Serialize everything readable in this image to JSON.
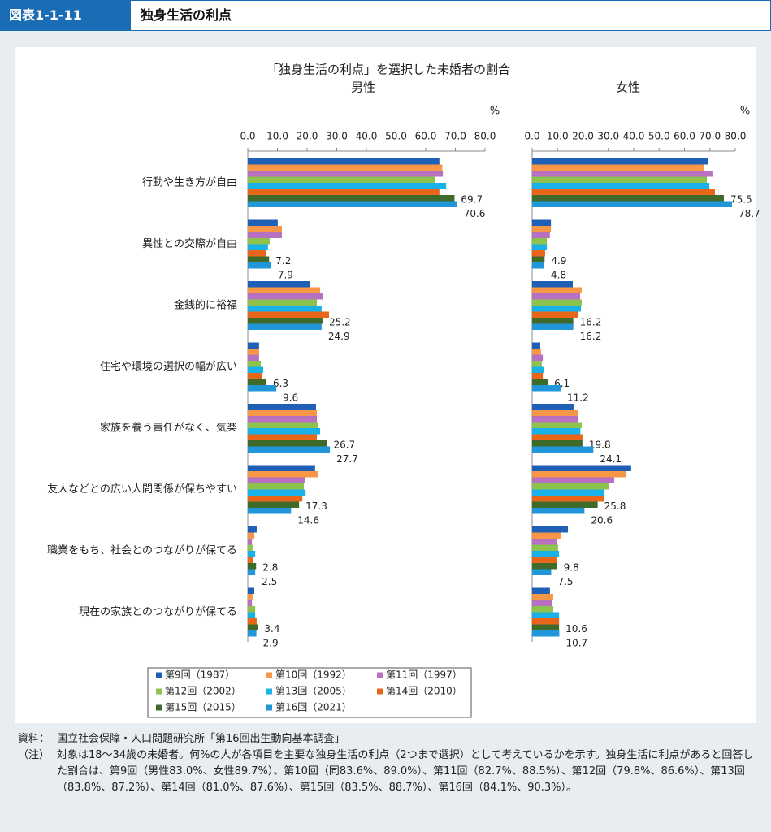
{
  "header": {
    "label": "図表1-1-11",
    "title": "独身生活の利点"
  },
  "chart_data": {
    "type": "bar",
    "horizontal": true,
    "title": "「独身生活の利点」を選択した未婚者の割合",
    "categories": [
      "行動や生き方が自由",
      "異性との交際が自由",
      "金銭的に裕福",
      "住宅や環境の選択の幅が広い",
      "家族を養う責任がなく、気楽",
      "友人などとの広い人間関係が保ちやすい",
      "職業をもち、社会とのつながりが保てる",
      "現在の家族とのつながりが保てる"
    ],
    "legend": [
      {
        "name": "第9回（1987）",
        "color": "#1f5fb5"
      },
      {
        "name": "第10回（1992）",
        "color": "#f79646"
      },
      {
        "name": "第11回（1997）",
        "color": "#b870c0"
      },
      {
        "name": "第12回（2002）",
        "color": "#8dc24c"
      },
      {
        "name": "第13回（2005）",
        "color": "#19b2e8"
      },
      {
        "name": "第14回（2010）",
        "color": "#e8661a"
      },
      {
        "name": "第15回（2015）",
        "color": "#3f6b2a"
      },
      {
        "name": "第16回（2021）",
        "color": "#2196d8"
      }
    ],
    "panels": [
      {
        "subtitle": "男性",
        "unit": "%",
        "xlim": [
          0,
          80
        ],
        "xticks": [
          {
            "value": 0,
            "label": "0.0"
          },
          {
            "value": 10,
            "label": "10.0"
          },
          {
            "value": 20,
            "label": "20.0"
          },
          {
            "value": 30,
            "label": "30.0"
          },
          {
            "value": 40,
            "label": "40.0"
          },
          {
            "value": 50,
            "label": "50.0"
          },
          {
            "value": 60,
            "label": "60.0"
          },
          {
            "value": 70,
            "label": "70.0"
          },
          {
            "value": 80,
            "label": "80.0"
          }
        ],
        "series": [
          {
            "labeled": false,
            "values": [
              64.6,
              10.1,
              21.1,
              3.8,
              23.0,
              22.7,
              3.0,
              2.2
            ]
          },
          {
            "labeled": false,
            "values": [
              65.6,
              11.5,
              24.4,
              3.8,
              23.3,
              23.6,
              2.2,
              1.6
            ]
          },
          {
            "labeled": false,
            "values": [
              65.8,
              11.5,
              25.2,
              3.8,
              23.3,
              19.2,
              1.4,
              1.4
            ]
          },
          {
            "labeled": false,
            "values": [
              63.1,
              7.4,
              23.3,
              4.4,
              23.6,
              18.9,
              1.6,
              2.5
            ]
          },
          {
            "labeled": false,
            "values": [
              66.9,
              6.8,
              24.9,
              5.2,
              24.4,
              19.5,
              2.5,
              2.5
            ]
          },
          {
            "labeled": false,
            "values": [
              64.6,
              6.3,
              27.4,
              4.7,
              23.3,
              18.4,
              1.9,
              3.0
            ]
          },
          {
            "labeled": true,
            "values": [
              69.7,
              7.2,
              25.2,
              6.3,
              26.7,
              17.3,
              2.8,
              3.4
            ]
          },
          {
            "labeled": true,
            "values": [
              70.6,
              7.9,
              24.9,
              9.6,
              27.7,
              14.6,
              2.5,
              2.9
            ]
          }
        ]
      },
      {
        "subtitle": "女性",
        "unit": "%",
        "xlim": [
          0,
          80
        ],
        "xticks": [
          {
            "value": 0,
            "label": "0.0"
          },
          {
            "value": 10,
            "label": "10.0"
          },
          {
            "value": 20,
            "label": "20.0"
          },
          {
            "value": 30,
            "label": "30.0"
          },
          {
            "value": 40,
            "label": "40.0"
          },
          {
            "value": 50,
            "label": "50.0"
          },
          {
            "value": 60,
            "label": "60.0"
          },
          {
            "value": 70,
            "label": "70.0"
          },
          {
            "value": 80,
            "label": "80.0"
          }
        ],
        "series": [
          {
            "labeled": false,
            "values": [
              69.4,
              7.4,
              16.0,
              3.2,
              16.3,
              39.0,
              14.1,
              7.0
            ]
          },
          {
            "labeled": false,
            "values": [
              67.5,
              7.4,
              19.5,
              3.5,
              18.2,
              37.1,
              11.2,
              8.3
            ]
          },
          {
            "labeled": false,
            "values": [
              71.0,
              7.0,
              18.9,
              4.2,
              18.2,
              32.3,
              9.6,
              8.0
            ]
          },
          {
            "labeled": false,
            "values": [
              68.8,
              5.8,
              19.5,
              3.8,
              19.5,
              30.1,
              10.2,
              8.3
            ]
          },
          {
            "labeled": false,
            "values": [
              69.8,
              5.8,
              19.2,
              4.8,
              19.0,
              28.5,
              10.6,
              10.6
            ]
          },
          {
            "labeled": false,
            "values": [
              72.0,
              5.1,
              18.2,
              4.2,
              19.8,
              28.2,
              9.9,
              10.6
            ]
          },
          {
            "labeled": true,
            "values": [
              75.5,
              4.9,
              16.2,
              6.1,
              19.8,
              25.8,
              9.8,
              10.6
            ]
          },
          {
            "labeled": true,
            "values": [
              78.7,
              4.8,
              16.2,
              11.2,
              24.1,
              20.6,
              7.5,
              10.7
            ]
          }
        ]
      }
    ]
  },
  "notes": [
    {
      "label": "資料：",
      "text": "国立社会保障・人口問題研究所「第16回出生動向基本調査」"
    },
    {
      "label": "（注）",
      "text": "対象は18～34歳の未婚者。何%の人が各項目を主要な独身生活の利点（2つまで選択）として考えているかを示す。独身生活に利点があると回答した割合は、第9回（男性83.0%、女性89.7%）、第10回（同83.6%、89.0%）、第11回（82.7%、88.5%）、第12回（79.8%、86.6%）、第13回（83.8%、87.2%）、第14回（81.0%、87.6%）、第15回（83.5%、88.7%）、第16回（84.1%、90.3%）。"
    }
  ]
}
